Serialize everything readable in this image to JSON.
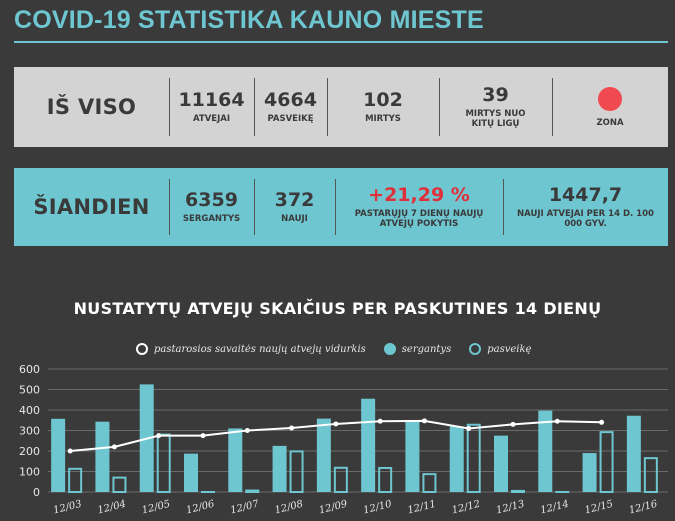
{
  "title": "COVID-19 STATISTIKA KAUNO MIESTE",
  "total": {
    "heading": "IŠ VISO",
    "stats": [
      {
        "value": "11164",
        "label": "ATVEJAI"
      },
      {
        "value": "4664",
        "label": "PASVEIKĘ"
      },
      {
        "value": "102",
        "label": "MIRTYS"
      },
      {
        "value": "39",
        "label": "MIRTYS NUO KITŲ LIGŲ"
      }
    ],
    "zone_label": "ZONA",
    "zone_color": "#f04a50"
  },
  "today": {
    "heading": "ŠIANDIEN",
    "stats": [
      {
        "value": "6359",
        "label": "SERGANTYS"
      },
      {
        "value": "372",
        "label": "NAUJI"
      },
      {
        "value": "+21,29 %",
        "label": "PASTARŲJŲ 7 DIENŲ NAUJŲ ATVEJŲ POKYTIS"
      },
      {
        "value": "1447,7",
        "label": "NAUJI ATVEJAI PER 14 D. 100 000 GYV."
      }
    ]
  },
  "chart_title": "NUSTATYTŲ ATVEJŲ SKAIČIUS PER PASKUTINES 14 DIENŲ",
  "legend": {
    "avg": "pastarosios savaitės naujų atvejų vidurkis",
    "sick": "sergantys",
    "recovered": "pasveikę"
  },
  "colors": {
    "teal": "#6ec6d0",
    "dark": "#3a3a3a",
    "white": "#ffffff",
    "grid": "#6a6a6a"
  },
  "chart_data": {
    "type": "bar",
    "title": "NUSTATYTŲ ATVEJŲ SKAIČIUS PER PASKUTINES 14 DIENŲ",
    "categories": [
      "12/03",
      "12/04",
      "12/05",
      "12/06",
      "12/07",
      "12/08",
      "12/09",
      "12/10",
      "12/11",
      "12/12",
      "12/13",
      "12/14",
      "12/15",
      "12/16"
    ],
    "series": [
      {
        "name": "sergantys",
        "type": "bar",
        "values": [
          357,
          343,
          525,
          187,
          310,
          225,
          358,
          455,
          345,
          320,
          275,
          397,
          190,
          372
        ]
      },
      {
        "name": "pasveikę",
        "type": "bar",
        "values": [
          118,
          75,
          285,
          5,
          12,
          203,
          123,
          122,
          92,
          333,
          10,
          5,
          297,
          170
        ]
      },
      {
        "name": "pastarosios savaitės naujų atvejų vidurkis",
        "type": "line",
        "values": [
          200,
          220,
          275,
          275,
          300,
          312,
          332,
          345,
          347,
          310,
          330,
          345,
          340,
          null
        ]
      }
    ],
    "ylim": [
      0,
      600
    ],
    "yticks": [
      0,
      100,
      200,
      300,
      400,
      500,
      600
    ],
    "grid": true,
    "legend_position": "top"
  }
}
